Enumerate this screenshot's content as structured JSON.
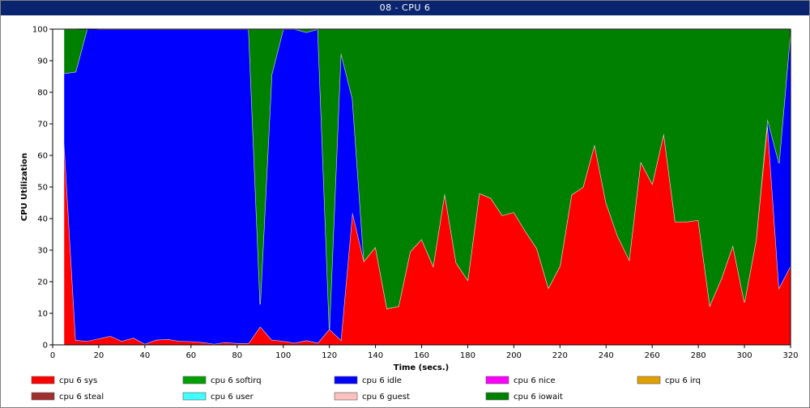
{
  "window": {
    "title": "08 - CPU 6"
  },
  "chart_data": {
    "type": "area",
    "stacked": true,
    "xlabel": "Time (secs.)",
    "ylabel": "CPU Utilization",
    "xlim": [
      0,
      320
    ],
    "ylim": [
      0,
      100
    ],
    "xticks": [
      0,
      20,
      40,
      60,
      80,
      100,
      120,
      140,
      160,
      180,
      200,
      220,
      240,
      260,
      280,
      300,
      320
    ],
    "yticks": [
      0,
      10,
      20,
      30,
      40,
      50,
      60,
      70,
      80,
      90,
      100
    ],
    "grid": false,
    "legend_position": "bottom",
    "x": [
      5,
      10,
      15,
      20,
      25,
      30,
      35,
      40,
      45,
      50,
      55,
      60,
      65,
      70,
      75,
      80,
      85,
      90,
      95,
      100,
      105,
      110,
      115,
      120,
      125,
      130,
      135,
      140,
      145,
      150,
      155,
      160,
      165,
      170,
      175,
      180,
      185,
      190,
      195,
      200,
      205,
      210,
      215,
      220,
      225,
      230,
      235,
      240,
      245,
      250,
      255,
      260,
      265,
      270,
      275,
      280,
      285,
      290,
      295,
      300,
      305,
      310,
      315,
      320
    ],
    "series": [
      {
        "name": "cpu 6 sys",
        "color": "#ff0000",
        "values": [
          64,
          1.5,
          1.2,
          2,
          2.8,
          1.2,
          2.2,
          0.3,
          1.6,
          1.8,
          1.2,
          1.1,
          0.8,
          0.3,
          0.8,
          0.5,
          0.5,
          5.8,
          1.6,
          1.2,
          0.6,
          1.4,
          0.6,
          5,
          1.5,
          42,
          26.5,
          31,
          11.5,
          12.2,
          29.5,
          33.5,
          25,
          48,
          26,
          20.5,
          48,
          46.5,
          41,
          42,
          36,
          30.5,
          18,
          25,
          47.5,
          50,
          63.5,
          45,
          34.5,
          27,
          58,
          51,
          67,
          39,
          39,
          39.5,
          12.5,
          21,
          31.5,
          13.5,
          33,
          70,
          18,
          25
        ]
      },
      {
        "name": "cpu 6 softirq",
        "color": "#00a000",
        "values": [
          0,
          0,
          0,
          0,
          0,
          0,
          0,
          0,
          0,
          0,
          0,
          0,
          0,
          0,
          0,
          0,
          0,
          0,
          0,
          0,
          0,
          0,
          0,
          0,
          0,
          0,
          0,
          0,
          0,
          0,
          0,
          0,
          0,
          0,
          0,
          0,
          0,
          0,
          0,
          0,
          0,
          0,
          0,
          0,
          0,
          0,
          0,
          0,
          0,
          0,
          0,
          0,
          0,
          0,
          0,
          0,
          0,
          0,
          0,
          0,
          0,
          0,
          0,
          0
        ]
      },
      {
        "name": "cpu 6 idle",
        "color": "#0000ff",
        "values": [
          22,
          85,
          99,
          98,
          97.2,
          98.8,
          97.8,
          99.7,
          98.4,
          98.2,
          98.8,
          98.9,
          99.2,
          99.7,
          99.2,
          99.5,
          99.5,
          7,
          84,
          98.8,
          99.4,
          97.6,
          99.4,
          0,
          91,
          36,
          0,
          0,
          0,
          0,
          0,
          0,
          0,
          0,
          0,
          0,
          0,
          0,
          0,
          0,
          0,
          0,
          0,
          0,
          0,
          0,
          0,
          0,
          0,
          0,
          0,
          0,
          0,
          0,
          0,
          0,
          0,
          0,
          0,
          0,
          0,
          1.5,
          39.5,
          74.5
        ]
      },
      {
        "name": "cpu 6 nice",
        "color": "#ff00ff",
        "values": [
          0,
          0,
          0,
          0,
          0,
          0,
          0,
          0,
          0,
          0,
          0,
          0,
          0,
          0,
          0,
          0,
          0,
          0,
          0,
          0,
          0,
          0,
          0,
          0,
          0,
          0,
          0,
          0,
          0,
          0,
          0,
          0,
          0,
          0,
          0,
          0,
          0,
          0,
          0,
          0,
          0,
          0,
          0,
          0,
          0,
          0,
          0,
          0,
          0,
          0,
          0,
          0,
          0,
          0,
          0,
          0,
          0,
          0,
          0,
          0,
          0,
          0,
          0,
          0
        ]
      },
      {
        "name": "cpu 6 irq",
        "color": "#e0a000",
        "values": [
          0,
          0,
          0,
          0,
          0,
          0,
          0,
          0,
          0,
          0,
          0,
          0,
          0,
          0,
          0,
          0,
          0,
          0,
          0,
          0,
          0,
          0,
          0,
          0,
          0,
          0,
          0,
          0,
          0,
          0,
          0,
          0,
          0,
          0,
          0,
          0,
          0,
          0,
          0,
          0,
          0,
          0,
          0,
          0,
          0,
          0,
          0,
          0,
          0,
          0,
          0,
          0,
          0,
          0,
          0,
          0,
          0,
          0,
          0,
          0,
          0,
          0,
          0,
          0
        ]
      },
      {
        "name": "cpu 6 steal",
        "color": "#a03030",
        "values": [
          0,
          0,
          0,
          0,
          0,
          0,
          0,
          0,
          0,
          0,
          0,
          0,
          0,
          0,
          0,
          0,
          0,
          0,
          0,
          0,
          0,
          0,
          0,
          0,
          0,
          0,
          0,
          0,
          0,
          0,
          0,
          0,
          0,
          0,
          0,
          0,
          0,
          0,
          0,
          0,
          0,
          0,
          0,
          0,
          0,
          0,
          0,
          0,
          0,
          0,
          0,
          0,
          0,
          0,
          0,
          0,
          0,
          0,
          0,
          0,
          0,
          0,
          0,
          0
        ]
      },
      {
        "name": "cpu 6 user",
        "color": "#40ffff",
        "values": [
          0,
          0,
          0,
          0,
          0,
          0,
          0,
          0,
          0,
          0,
          0,
          0,
          0,
          0,
          0,
          0,
          0,
          0,
          0,
          0,
          0,
          0,
          0,
          0,
          0,
          0,
          0,
          0,
          0,
          0,
          0,
          0,
          0,
          0,
          0,
          0,
          0,
          0,
          0,
          0,
          0,
          0,
          0,
          0,
          0,
          0,
          0,
          0,
          0,
          0,
          0,
          0,
          0,
          0,
          0,
          0,
          0,
          0,
          0,
          0,
          0,
          0,
          0,
          0
        ]
      },
      {
        "name": "cpu 6 guest",
        "color": "#ffc0c0",
        "values": [
          0,
          0,
          0,
          0,
          0,
          0,
          0,
          0,
          0,
          0,
          0,
          0,
          0,
          0,
          0,
          0,
          0,
          0,
          0,
          0,
          0,
          0,
          0,
          0,
          0,
          0,
          0,
          0,
          0,
          0,
          0,
          0,
          0,
          0,
          0,
          0,
          0,
          0,
          0,
          0,
          0,
          0,
          0,
          0,
          0,
          0,
          0,
          0,
          0,
          0,
          0,
          0,
          0,
          0,
          0,
          0,
          0,
          0,
          0,
          0,
          0,
          0,
          0,
          0
        ]
      },
      {
        "name": "cpu 6 iowait",
        "color": "#008000",
        "values": [
          14,
          13.5,
          0,
          0,
          0,
          0,
          0,
          0,
          0,
          0,
          0,
          0,
          0,
          0,
          0,
          0,
          0,
          87.2,
          14.4,
          0,
          0,
          1,
          0,
          95,
          7.5,
          22,
          73.5,
          69,
          88.5,
          87.8,
          70.5,
          66.5,
          75,
          52,
          74,
          79.5,
          52,
          53.5,
          59,
          58,
          64,
          69.5,
          82,
          75,
          52.5,
          50,
          36.5,
          55,
          65.5,
          73,
          42,
          49,
          33,
          61,
          61,
          60.5,
          87.5,
          79,
          68.5,
          86.5,
          67,
          28.5,
          42.5,
          0.5
        ]
      }
    ]
  }
}
